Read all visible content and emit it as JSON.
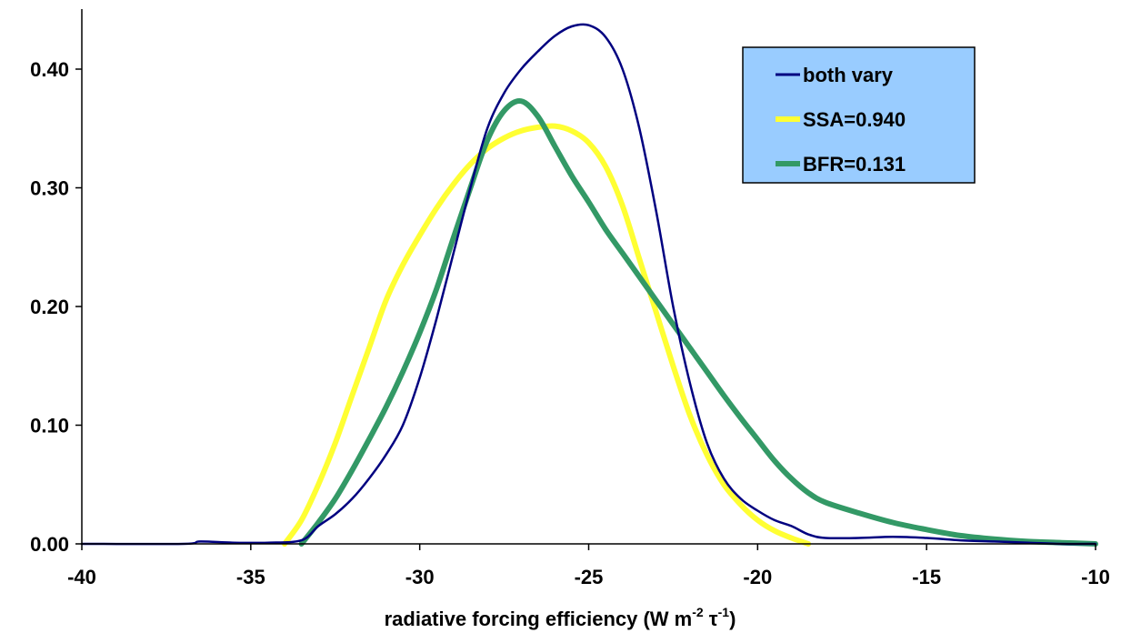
{
  "chart_data": {
    "type": "line",
    "title": "",
    "xlabel": {
      "main": "radiative forcing efficiency (W m",
      "sup1": "-2",
      "mid": " τ",
      "sup2": "-1",
      "end": ")"
    },
    "ylabel": "",
    "xlim": [
      -40,
      -10
    ],
    "ylim": [
      0,
      0.44
    ],
    "x_ticks": [
      "-40",
      "-35",
      "-30",
      "-25",
      "-20",
      "-15",
      "-10"
    ],
    "x_tick_values": [
      -40,
      -35,
      -30,
      -25,
      -20,
      -15,
      -10
    ],
    "y_ticks": [
      "0.00",
      "0.10",
      "0.20",
      "0.30",
      "0.40"
    ],
    "y_tick_values": [
      0,
      0.1,
      0.2,
      0.3,
      0.4
    ],
    "grid": false,
    "legend_placement": "top-right",
    "legend_background": "#99CCFF",
    "series": [
      {
        "name": "both vary",
        "color": "#000080",
        "width": "thin",
        "points": [
          [
            -40,
            0
          ],
          [
            -37,
            0.0
          ],
          [
            -36.5,
            0.002
          ],
          [
            -35.5,
            0.001
          ],
          [
            -34.5,
            0.001
          ],
          [
            -33.5,
            0.003
          ],
          [
            -33,
            0.015
          ],
          [
            -32.5,
            0.025
          ],
          [
            -32,
            0.038
          ],
          [
            -31.5,
            0.055
          ],
          [
            -31,
            0.075
          ],
          [
            -30.5,
            0.1
          ],
          [
            -30,
            0.14
          ],
          [
            -29.5,
            0.19
          ],
          [
            -29,
            0.245
          ],
          [
            -28.5,
            0.3
          ],
          [
            -28,
            0.35
          ],
          [
            -27.5,
            0.38
          ],
          [
            -27,
            0.4
          ],
          [
            -26.5,
            0.415
          ],
          [
            -26,
            0.428
          ],
          [
            -25.5,
            0.436
          ],
          [
            -25,
            0.437
          ],
          [
            -24.5,
            0.427
          ],
          [
            -24,
            0.4
          ],
          [
            -23.5,
            0.35
          ],
          [
            -23,
            0.28
          ],
          [
            -22.5,
            0.2
          ],
          [
            -22,
            0.135
          ],
          [
            -21.5,
            0.085
          ],
          [
            -21,
            0.055
          ],
          [
            -20.5,
            0.038
          ],
          [
            -20,
            0.028
          ],
          [
            -19.5,
            0.02
          ],
          [
            -19,
            0.015
          ],
          [
            -18.5,
            0.008
          ],
          [
            -18,
            0.005
          ],
          [
            -17,
            0.005
          ],
          [
            -16,
            0.006
          ],
          [
            -15,
            0.005
          ],
          [
            -14,
            0.003
          ],
          [
            -13,
            0.002
          ],
          [
            -12,
            0.001
          ],
          [
            -11,
            0.0
          ],
          [
            -10,
            0
          ]
        ]
      },
      {
        "name": "SSA=0.940",
        "color": "#FFFF33",
        "width": "thick",
        "points": [
          [
            -34,
            0
          ],
          [
            -33.5,
            0.02
          ],
          [
            -33,
            0.05
          ],
          [
            -32.5,
            0.085
          ],
          [
            -32,
            0.125
          ],
          [
            -31.5,
            0.165
          ],
          [
            -31,
            0.205
          ],
          [
            -30.5,
            0.235
          ],
          [
            -30,
            0.26
          ],
          [
            -29.5,
            0.283
          ],
          [
            -29,
            0.303
          ],
          [
            -28.5,
            0.32
          ],
          [
            -28,
            0.333
          ],
          [
            -27.5,
            0.342
          ],
          [
            -27,
            0.348
          ],
          [
            -26.5,
            0.351
          ],
          [
            -26,
            0.352
          ],
          [
            -25.5,
            0.348
          ],
          [
            -25,
            0.338
          ],
          [
            -24.5,
            0.318
          ],
          [
            -24,
            0.285
          ],
          [
            -23.5,
            0.24
          ],
          [
            -23,
            0.195
          ],
          [
            -22.5,
            0.15
          ],
          [
            -22,
            0.108
          ],
          [
            -21.5,
            0.075
          ],
          [
            -21,
            0.05
          ],
          [
            -20.5,
            0.033
          ],
          [
            -20,
            0.02
          ],
          [
            -19.5,
            0.011
          ],
          [
            -19,
            0.005
          ],
          [
            -18.5,
            0.0
          ]
        ]
      },
      {
        "name": "BFR=0.131",
        "color": "#339966",
        "width": "thick",
        "points": [
          [
            -33.5,
            0
          ],
          [
            -33,
            0.018
          ],
          [
            -32.5,
            0.038
          ],
          [
            -32,
            0.062
          ],
          [
            -31.5,
            0.088
          ],
          [
            -31,
            0.115
          ],
          [
            -30.5,
            0.145
          ],
          [
            -30,
            0.178
          ],
          [
            -29.5,
            0.215
          ],
          [
            -29,
            0.258
          ],
          [
            -28.5,
            0.3
          ],
          [
            -28,
            0.34
          ],
          [
            -27.5,
            0.365
          ],
          [
            -27,
            0.373
          ],
          [
            -26.5,
            0.36
          ],
          [
            -26,
            0.335
          ],
          [
            -25.5,
            0.31
          ],
          [
            -25,
            0.288
          ],
          [
            -24.5,
            0.265
          ],
          [
            -24,
            0.245
          ],
          [
            -23.5,
            0.225
          ],
          [
            -23,
            0.205
          ],
          [
            -22.5,
            0.185
          ],
          [
            -22,
            0.165
          ],
          [
            -21.5,
            0.145
          ],
          [
            -21,
            0.125
          ],
          [
            -20.5,
            0.106
          ],
          [
            -20,
            0.088
          ],
          [
            -19.5,
            0.07
          ],
          [
            -19,
            0.055
          ],
          [
            -18.5,
            0.043
          ],
          [
            -18,
            0.035
          ],
          [
            -17,
            0.026
          ],
          [
            -16,
            0.018
          ],
          [
            -15,
            0.012
          ],
          [
            -14,
            0.007
          ],
          [
            -13,
            0.004
          ],
          [
            -12,
            0.002
          ],
          [
            -11,
            0.001
          ],
          [
            -10,
            0
          ]
        ]
      }
    ]
  }
}
